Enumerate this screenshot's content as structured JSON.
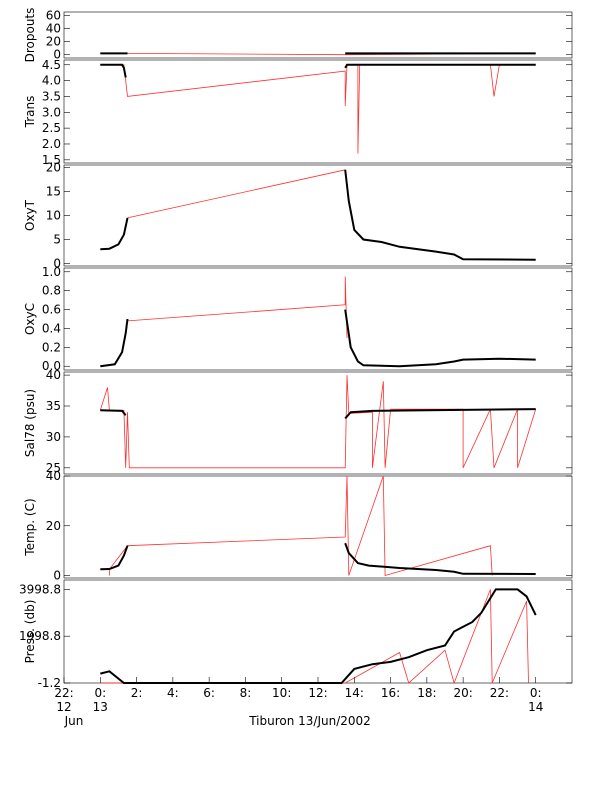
{
  "caption": "Tiburon 13/Jun/2002",
  "colors": {
    "raw": "#ff3030",
    "processed": "#000000",
    "frame": "#000000"
  },
  "chart_data": {
    "type": "line",
    "x_axis": {
      "unit": "hour",
      "range": [
        -2,
        26
      ],
      "ticks": [
        {
          "x": -2,
          "label": "22:",
          "sub": "12",
          "sub2": "Jun"
        },
        {
          "x": 0,
          "label": "0:",
          "sub": "13"
        },
        {
          "x": 2,
          "label": "2:"
        },
        {
          "x": 4,
          "label": "4:"
        },
        {
          "x": 6,
          "label": "6:"
        },
        {
          "x": 8,
          "label": "8:"
        },
        {
          "x": 10,
          "label": "10:"
        },
        {
          "x": 12,
          "label": "12:"
        },
        {
          "x": 14,
          "label": "14:"
        },
        {
          "x": 16,
          "label": "16:"
        },
        {
          "x": 18,
          "label": "18:"
        },
        {
          "x": 20,
          "label": "20:"
        },
        {
          "x": 22,
          "label": "22:"
        },
        {
          "x": 24,
          "label": "0:",
          "sub": "14"
        }
      ]
    },
    "panels": [
      {
        "ylabel": "Dropouts",
        "ylim": [
          -5,
          65
        ],
        "ticks": [
          {
            "v": 60,
            "l": "60"
          },
          {
            "v": 40,
            "l": "40"
          },
          {
            "v": 20,
            "l": "20"
          },
          {
            "v": 0,
            "l": "0"
          }
        ],
        "raw": [
          [
            0,
            2
          ],
          [
            1.5,
            2
          ],
          [
            13.5,
            0
          ],
          [
            24,
            2
          ]
        ],
        "processed": [
          [
            0,
            2
          ],
          [
            1.5,
            2
          ],
          [
            null,
            null
          ],
          [
            13.5,
            2
          ],
          [
            24,
            2
          ]
        ]
      },
      {
        "ylabel": "Trans",
        "ylim": [
          1.4,
          4.65
        ],
        "ticks": [
          {
            "v": 4.5,
            "l": "4.5"
          },
          {
            "v": 4.0,
            "l": "4.0"
          },
          {
            "v": 3.5,
            "l": "3.5"
          },
          {
            "v": 3.0,
            "l": "3.0"
          },
          {
            "v": 2.5,
            "l": "2.5"
          },
          {
            "v": 2.0,
            "l": "2.0"
          },
          {
            "v": 1.5,
            "l": "1.5"
          }
        ],
        "raw": [
          [
            0,
            4.5
          ],
          [
            1.3,
            4.5
          ],
          [
            1.5,
            3.5
          ],
          [
            13.5,
            4.3
          ],
          [
            13.5,
            3.2
          ],
          [
            13.6,
            4.5
          ],
          [
            14.2,
            4.5
          ],
          [
            14.2,
            1.7
          ],
          [
            14.3,
            4.5
          ],
          [
            21.5,
            4.5
          ],
          [
            21.7,
            3.5
          ],
          [
            22,
            4.5
          ],
          [
            24,
            4.5
          ]
        ],
        "processed": [
          [
            0,
            4.5
          ],
          [
            1.2,
            4.5
          ],
          [
            1.3,
            4.4
          ],
          [
            1.4,
            4.1
          ],
          [
            null,
            null
          ],
          [
            13.5,
            4.4
          ],
          [
            13.6,
            4.5
          ],
          [
            24,
            4.5
          ]
        ]
      },
      {
        "ylabel": "OxyT",
        "ylim": [
          -0.5,
          20.5
        ],
        "ticks": [
          {
            "v": 20,
            "l": "20"
          },
          {
            "v": 15,
            "l": "15"
          },
          {
            "v": 10,
            "l": "10"
          },
          {
            "v": 5,
            "l": "5"
          },
          {
            "v": 0,
            "l": "0"
          }
        ],
        "raw": [
          [
            1.5,
            9.5
          ],
          [
            13.5,
            19.5
          ]
        ],
        "processed": [
          [
            0,
            3.0
          ],
          [
            0.5,
            3.1
          ],
          [
            1.0,
            4.0
          ],
          [
            1.3,
            6.0
          ],
          [
            1.5,
            9.5
          ],
          [
            null,
            null
          ],
          [
            13.5,
            19.5
          ],
          [
            13.7,
            13.0
          ],
          [
            14.0,
            7.0
          ],
          [
            14.5,
            5.0
          ],
          [
            15.5,
            4.5
          ],
          [
            16.5,
            3.5
          ],
          [
            18.5,
            2.5
          ],
          [
            19.5,
            1.9
          ],
          [
            20,
            0.9
          ],
          [
            24,
            0.8
          ]
        ]
      },
      {
        "ylabel": "OxyC",
        "ylim": [
          -0.04,
          1.04
        ],
        "ticks": [
          {
            "v": 1.0,
            "l": "1.0"
          },
          {
            "v": 0.8,
            "l": "0.8"
          },
          {
            "v": 0.6,
            "l": "0.6"
          },
          {
            "v": 0.4,
            "l": "0.4"
          },
          {
            "v": 0.2,
            "l": "0.2"
          },
          {
            "v": 0.0,
            "l": "0.0"
          }
        ],
        "raw": [
          [
            1.5,
            0.48
          ],
          [
            13.5,
            0.65
          ],
          [
            13.5,
            0.95
          ],
          [
            13.6,
            0.3
          ]
        ],
        "processed": [
          [
            0,
            0.0
          ],
          [
            0.8,
            0.02
          ],
          [
            1.2,
            0.15
          ],
          [
            1.4,
            0.35
          ],
          [
            1.5,
            0.5
          ],
          [
            null,
            null
          ],
          [
            13.5,
            0.6
          ],
          [
            13.8,
            0.2
          ],
          [
            14.2,
            0.05
          ],
          [
            14.5,
            0.01
          ],
          [
            16.5,
            0.0
          ],
          [
            18.5,
            0.02
          ],
          [
            19.5,
            0.05
          ],
          [
            20,
            0.07
          ],
          [
            22,
            0.08
          ],
          [
            24,
            0.07
          ]
        ]
      },
      {
        "ylabel": "Sal78 (psu)",
        "ylim": [
          24,
          40.5
        ],
        "ticks": [
          {
            "v": 40,
            "l": "40"
          },
          {
            "v": 35,
            "l": "35"
          },
          {
            "v": 30,
            "l": "30"
          },
          {
            "v": 25,
            "l": "25"
          }
        ],
        "raw": [
          [
            0,
            34.3
          ],
          [
            0.4,
            38
          ],
          [
            0.5,
            34.3
          ],
          [
            1.3,
            34.3
          ],
          [
            1.4,
            25
          ],
          [
            1.5,
            34
          ],
          [
            1.6,
            25
          ],
          [
            13.5,
            25
          ],
          [
            13.6,
            40
          ],
          [
            13.7,
            33.8
          ],
          [
            15,
            34
          ],
          [
            15,
            25
          ],
          [
            15.6,
            39
          ],
          [
            15.7,
            25
          ],
          [
            16,
            34.5
          ],
          [
            20,
            34.5
          ],
          [
            20,
            25
          ],
          [
            21.5,
            34.5
          ],
          [
            21.7,
            25
          ],
          [
            23,
            34.5
          ],
          [
            23,
            25
          ],
          [
            24,
            34.5
          ]
        ],
        "processed": [
          [
            0,
            34.3
          ],
          [
            1.2,
            34.2
          ],
          [
            1.4,
            33.5
          ],
          [
            null,
            null
          ],
          [
            13.5,
            33.0
          ],
          [
            13.8,
            34.0
          ],
          [
            15,
            34.2
          ],
          [
            24,
            34.5
          ]
        ]
      },
      {
        "ylabel": "Temp. (C)",
        "ylim": [
          -1.0,
          40.0
        ],
        "ticks": [
          {
            "v": 40,
            "l": "40"
          },
          {
            "v": 20,
            "l": "20"
          },
          {
            "v": 0,
            "l": "0"
          }
        ],
        "raw": [
          [
            0.5,
            0
          ],
          [
            0.5,
            2.5
          ],
          [
            1.5,
            12.0
          ],
          [
            13.5,
            15.5
          ],
          [
            13.6,
            40
          ],
          [
            13.7,
            0
          ],
          [
            15.6,
            40
          ],
          [
            15.7,
            0
          ],
          [
            21.5,
            12
          ],
          [
            21.6,
            0
          ]
        ],
        "processed": [
          [
            0,
            2.5
          ],
          [
            0.5,
            2.6
          ],
          [
            1.0,
            4.0
          ],
          [
            1.3,
            8.0
          ],
          [
            1.5,
            12.0
          ],
          [
            null,
            null
          ],
          [
            13.5,
            13.0
          ],
          [
            13.7,
            9.0
          ],
          [
            14.2,
            5.0
          ],
          [
            14.8,
            4.0
          ],
          [
            16.5,
            3.0
          ],
          [
            18.5,
            2.2
          ],
          [
            19.5,
            1.5
          ],
          [
            20,
            0.7
          ],
          [
            24,
            0.6
          ]
        ]
      },
      {
        "ylabel": "Press. (db)",
        "ylim": [
          -1.2,
          4400
        ],
        "ticks": [
          {
            "v": 3998.8,
            "l": "3998.8"
          },
          {
            "v": 1998.8,
            "l": "1998.8"
          },
          {
            "v": -1.2,
            "l": "-1.2"
          }
        ],
        "raw": [
          [
            0,
            0
          ],
          [
            1.5,
            0
          ],
          [
            13.5,
            0
          ],
          [
            16.5,
            1300
          ],
          [
            17,
            0
          ],
          [
            19,
            1400
          ],
          [
            19.5,
            0
          ],
          [
            21.5,
            3998
          ],
          [
            21.6,
            0
          ],
          [
            23.5,
            3500
          ],
          [
            23.6,
            0
          ]
        ],
        "processed": [
          [
            0,
            400
          ],
          [
            0.5,
            500
          ],
          [
            1.3,
            0
          ],
          [
            1.6,
            -1.2
          ],
          [
            13.3,
            -1.2
          ],
          [
            14,
            600
          ],
          [
            15,
            800
          ],
          [
            16,
            900
          ],
          [
            17,
            1100
          ],
          [
            18,
            1400
          ],
          [
            19,
            1600
          ],
          [
            19.5,
            2200
          ],
          [
            20,
            2400
          ],
          [
            20.5,
            2600
          ],
          [
            21,
            3000
          ],
          [
            21.8,
            3998.8
          ],
          [
            23,
            3998.8
          ],
          [
            23.5,
            3700
          ],
          [
            24,
            2900
          ]
        ]
      }
    ]
  }
}
